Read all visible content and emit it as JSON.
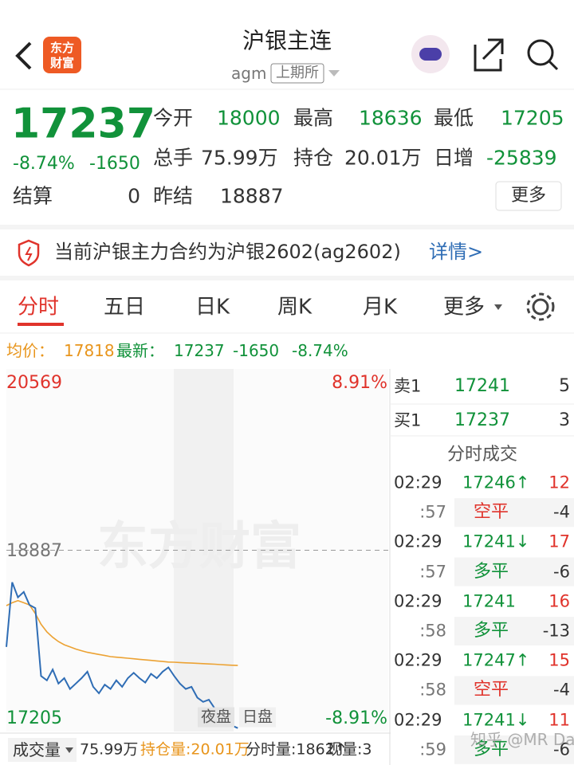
{
  "header": {
    "title": "沪银主连",
    "code": "agm",
    "exchange": "上期所",
    "logo": [
      "东方",
      "财富"
    ]
  },
  "quote": {
    "price": "17237",
    "change_pct": "-8.74%",
    "change": "-1650",
    "more": "更多",
    "fields": [
      {
        "label": "今开",
        "value": "18000",
        "color": "#11923a"
      },
      {
        "label": "最高",
        "value": "18636",
        "color": "#11923a"
      },
      {
        "label": "最低",
        "value": "17205",
        "color": "#11923a"
      },
      {
        "label": "总手",
        "value": "75.99万",
        "color": "#333333"
      },
      {
        "label": "持仓",
        "value": "20.01万",
        "color": "#333333"
      },
      {
        "label": "日增",
        "value": "-25839",
        "color": "#11923a"
      },
      {
        "label": "结算",
        "value": "0",
        "color": "#333333"
      },
      {
        "label": "昨结",
        "value": "18887",
        "color": "#333333"
      }
    ]
  },
  "notice": {
    "text": "当前沪银主力合约为沪银2602(ag2602)",
    "link": "详情>"
  },
  "tabs": [
    "分时",
    "五日",
    "日K",
    "周K",
    "月K",
    "更多"
  ],
  "summary": {
    "avg_label": "均价：",
    "avg": "17818",
    "last_label": "最新：",
    "last": "17237",
    "change": "-1650",
    "change_pct": "-8.74%"
  },
  "chart": {
    "watermark": "东方财富",
    "top_price": "20569",
    "top_pct": "8.91%",
    "ref_price": "18887",
    "bottom_price": "17205",
    "bottom_pct": "-8.91%",
    "sessions": [
      "夜盘",
      "日盘"
    ],
    "ylim": [
      17205,
      20569
    ],
    "ref": 18887,
    "xlim": [
      0,
      66
    ],
    "price_color": "#2f6db5",
    "avg_color": "#eca233",
    "price": [
      17990,
      18590,
      18450,
      18500,
      18380,
      18350,
      17720,
      17680,
      17780,
      17650,
      17700,
      17600,
      17650,
      17700,
      17760,
      17620,
      17560,
      17640,
      17600,
      17680,
      17620,
      17700,
      17750,
      17700,
      17660,
      17740,
      17700,
      17760,
      17800,
      17720,
      17650,
      17600,
      17620,
      17520,
      17480,
      17500,
      17420,
      17380,
      17300,
      17260,
      17237
    ],
    "avg": [
      18373,
      18400,
      18420,
      18400,
      18380,
      18300,
      18200,
      18130,
      18080,
      18040,
      18010,
      17990,
      17970,
      17955,
      17940,
      17930,
      17920,
      17910,
      17900,
      17895,
      17890,
      17885,
      17880,
      17875,
      17870,
      17865,
      17860,
      17855,
      17850,
      17848,
      17845,
      17842,
      17840,
      17838,
      17835,
      17832,
      17830,
      17826,
      17823,
      17820,
      17818
    ]
  },
  "book": {
    "levels": [
      {
        "label": "卖1",
        "price": "17241",
        "qty": "5"
      },
      {
        "label": "买1",
        "price": "17237",
        "qty": "3"
      }
    ],
    "trades_title": "分时成交",
    "trades": [
      {
        "time": "02:29",
        "price": "17246↑",
        "qty": "12"
      },
      {
        "time": ":57",
        "type": "空平",
        "qty": "-4"
      },
      {
        "time": "02:29",
        "price": "17241↓",
        "qty": "17"
      },
      {
        "time": ":57",
        "type": "多平",
        "qty": "-6"
      },
      {
        "time": "02:29",
        "price": "17241",
        "qty": "16"
      },
      {
        "time": ":58",
        "type": "多平",
        "qty": "-13"
      },
      {
        "time": "02:29",
        "price": "17247↑",
        "qty": "15"
      },
      {
        "time": ":58",
        "type": "空平",
        "qty": "-4"
      },
      {
        "time": "02:29",
        "price": "17241↓",
        "qty": "11"
      },
      {
        "time": ":59",
        "type": "多平",
        "qty": "-6"
      }
    ]
  },
  "footer": {
    "volume_label": "成交量",
    "volume": "75.99万",
    "oi": "持仓量:20.01万",
    "tick": "分时量:1862↑",
    "now": "现量:3"
  },
  "watermark": "知乎 @MR Dang"
}
